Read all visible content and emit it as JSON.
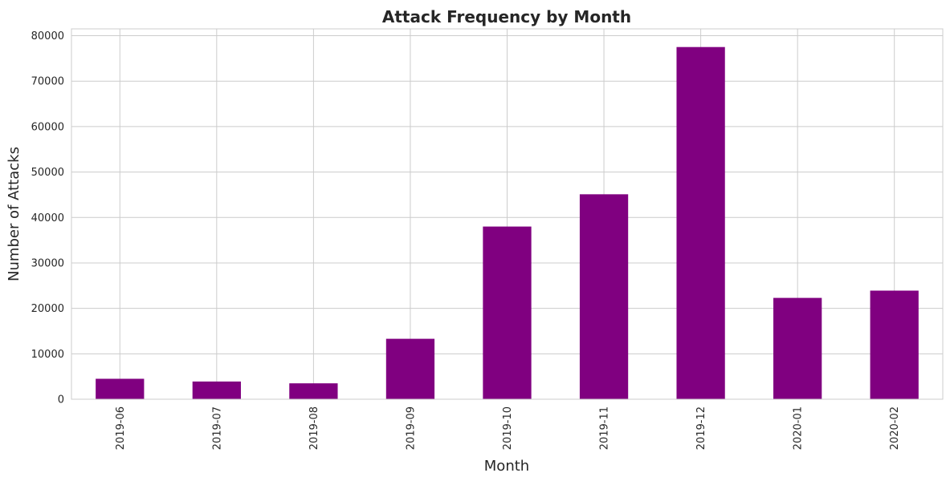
{
  "chart_data": {
    "type": "bar",
    "title": "Attack Frequency by Month",
    "xlabel": "Month",
    "ylabel": "Number of Attacks",
    "categories": [
      "2019-06",
      "2019-07",
      "2019-08",
      "2019-09",
      "2019-10",
      "2019-11",
      "2019-12",
      "2020-01",
      "2020-02"
    ],
    "values": [
      4500,
      3900,
      3500,
      13300,
      38000,
      45100,
      77500,
      22300,
      23900
    ],
    "ylim": [
      0,
      81500
    ],
    "yticks": [
      0,
      10000,
      20000,
      30000,
      40000,
      50000,
      60000,
      70000,
      80000
    ],
    "ytick_labels": [
      "0",
      "10000",
      "20000",
      "30000",
      "40000",
      "50000",
      "60000",
      "70000",
      "80000"
    ],
    "bar_color": "#800080",
    "grid": true,
    "legend": "none"
  }
}
